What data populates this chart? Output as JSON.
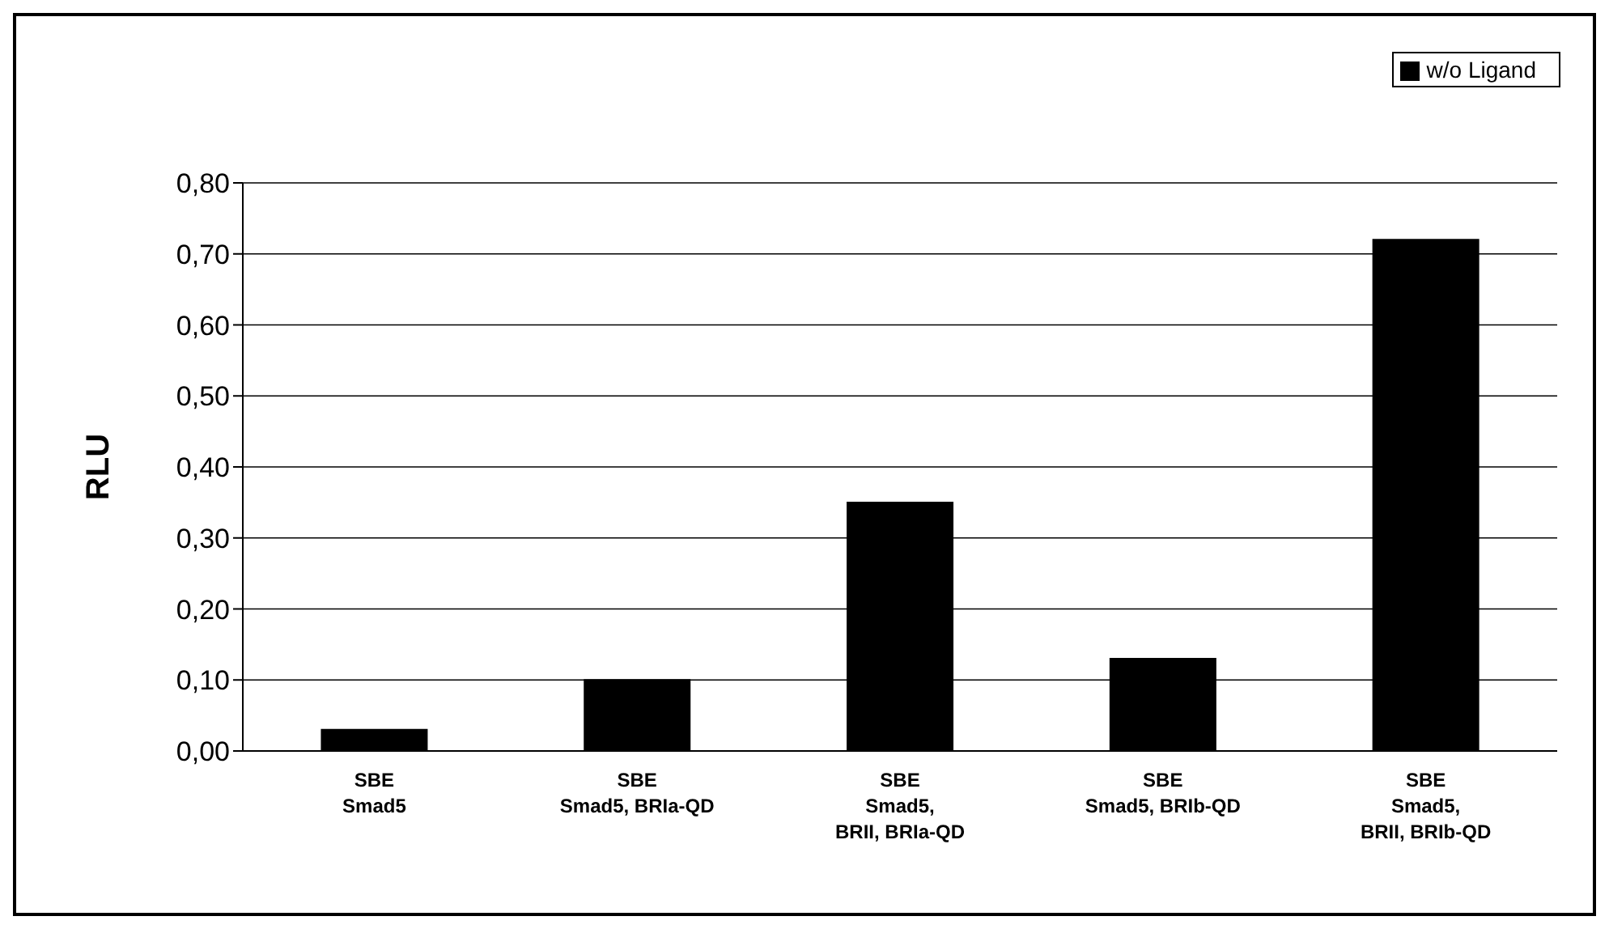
{
  "chart_data": {
    "type": "bar",
    "categories": [
      "SBE\nSmad5",
      "SBE\nSmad5, BRIa-QD",
      "SBE\nSmad5,\nBRII, BRIa-QD",
      "SBE\nSmad5, BRIb-QD",
      "SBE\nSmad5,\nBRII, BRIb-QD"
    ],
    "series": [
      {
        "name": "w/o Ligand",
        "color": "#000000",
        "values": [
          0.03,
          0.1,
          0.35,
          0.13,
          0.72
        ]
      }
    ],
    "ylabel": "RLU",
    "ylim": [
      0,
      0.8
    ],
    "yticks": [
      {
        "value": 0,
        "label": "0,00"
      },
      {
        "value": 0.1,
        "label": "0,10"
      },
      {
        "value": 0.2,
        "label": "0,20"
      },
      {
        "value": 0.3,
        "label": "0,30"
      },
      {
        "value": 0.4,
        "label": "0,40"
      },
      {
        "value": 0.5,
        "label": "0,50"
      },
      {
        "value": 0.6,
        "label": "0,60"
      },
      {
        "value": 0.7,
        "label": "0,70"
      },
      {
        "value": 0.8,
        "label": "0,80"
      }
    ],
    "grid": "y",
    "legend": "top right"
  }
}
